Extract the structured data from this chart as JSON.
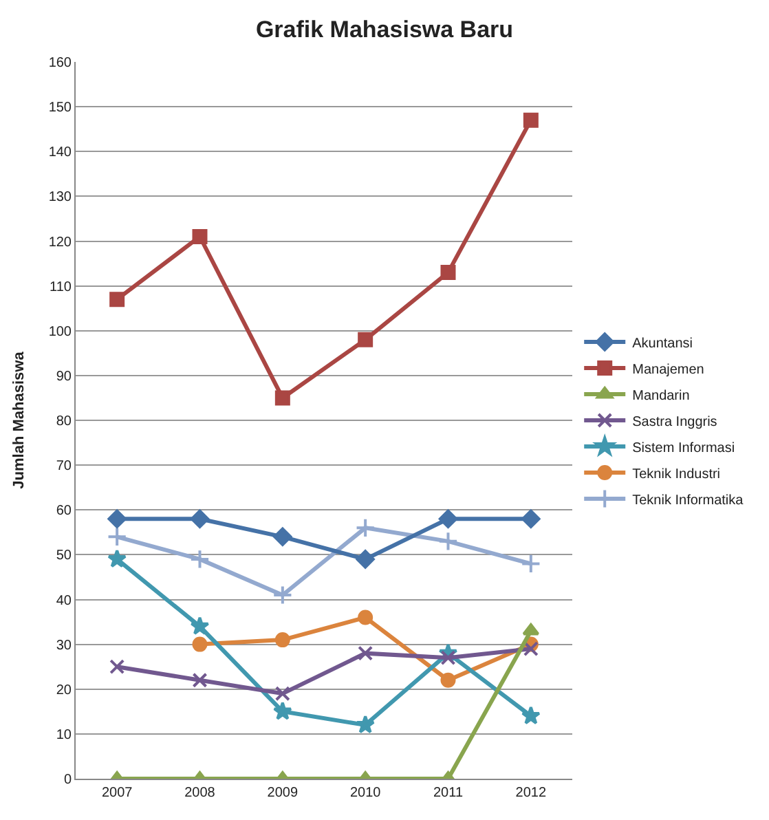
{
  "chart_data": {
    "type": "line",
    "title": "Grafik Mahasiswa Baru",
    "ylabel": "Jumlah Mahasiswa",
    "categories": [
      "2007",
      "2008",
      "2009",
      "2010",
      "2011",
      "2012"
    ],
    "series": [
      {
        "name": "Akuntansi",
        "color": "#4572a7",
        "marker": "diamond",
        "values": [
          58,
          58,
          54,
          49,
          58,
          58
        ]
      },
      {
        "name": "Manajemen",
        "color": "#aa4643",
        "marker": "square",
        "values": [
          107,
          121,
          85,
          98,
          113,
          147
        ]
      },
      {
        "name": "Mandarin",
        "color": "#89a54e",
        "marker": "triangle",
        "values": [
          0,
          0,
          0,
          0,
          0,
          33
        ]
      },
      {
        "name": "Sastra Inggris",
        "color": "#71588f",
        "marker": "cross",
        "values": [
          25,
          22,
          19,
          28,
          27,
          29
        ]
      },
      {
        "name": "Sistem Informasi",
        "color": "#4198af",
        "marker": "star",
        "values": [
          49,
          34,
          15,
          12,
          28,
          14
        ]
      },
      {
        "name": "Teknik Industri",
        "color": "#db843d",
        "marker": "circle",
        "values": [
          null,
          30,
          31,
          36,
          22,
          30
        ]
      },
      {
        "name": "Teknik Informatika",
        "color": "#93a9cf",
        "marker": "plus",
        "values": [
          54,
          49,
          41,
          56,
          53,
          48
        ]
      }
    ],
    "ylim": [
      0,
      160
    ],
    "yticks": [
      0,
      10,
      20,
      30,
      40,
      50,
      60,
      70,
      80,
      90,
      100,
      110,
      120,
      130,
      140,
      150,
      160
    ],
    "grid": "y",
    "legend": "right",
    "line_style": "solid"
  }
}
